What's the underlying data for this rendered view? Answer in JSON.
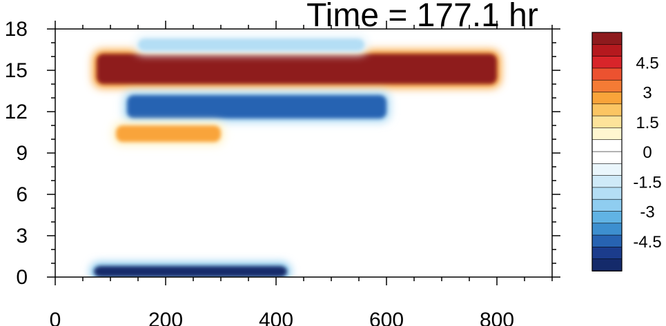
{
  "chart_data": {
    "type": "heatmap",
    "title": "Time = 177.1 hr",
    "x_ticks": [
      0,
      200,
      400,
      600,
      800
    ],
    "y_ticks": [
      0,
      3,
      6,
      9,
      12,
      15,
      18
    ],
    "xlim": [
      0,
      900
    ],
    "ylim": [
      0,
      18
    ],
    "colorbar": {
      "labels": [
        "4.5",
        "3",
        "1.5",
        "0",
        "-1.5",
        "-3",
        "-4.5"
      ],
      "level_min": -6,
      "level_max": 6,
      "level_step": 0.75,
      "colors_top_to_bottom": [
        "#8e1a1d",
        "#b5191e",
        "#d8252a",
        "#ec5230",
        "#f47b35",
        "#f9a43a",
        "#fbc563",
        "#fde39a",
        "#fff6d0",
        "#ffffff",
        "#ffffff",
        "#eaf6fc",
        "#cfeaf8",
        "#b4def5",
        "#8fcdf0",
        "#61b3e4",
        "#3d8fcf",
        "#2763b2",
        "#1b3c8c",
        "#142a6a"
      ]
    },
    "features": [
      {
        "label": "warm band",
        "x": [
          75,
          800
        ],
        "y": [
          14.0,
          16.2
        ],
        "value": 6.0
      },
      {
        "label": "cool band",
        "x": [
          130,
          600
        ],
        "y": [
          11.5,
          13.2
        ],
        "value": -4.5
      },
      {
        "label": "warm band",
        "x": [
          110,
          300
        ],
        "y": [
          9.8,
          11.0
        ],
        "value": 2.5
      },
      {
        "label": "cool band near surface",
        "x": [
          70,
          420
        ],
        "y": [
          0.0,
          0.8
        ],
        "value": -5.5
      },
      {
        "label": "upper cool band",
        "x": [
          150,
          560
        ],
        "y": [
          16.4,
          17.3
        ],
        "value": -2.2
      }
    ]
  }
}
